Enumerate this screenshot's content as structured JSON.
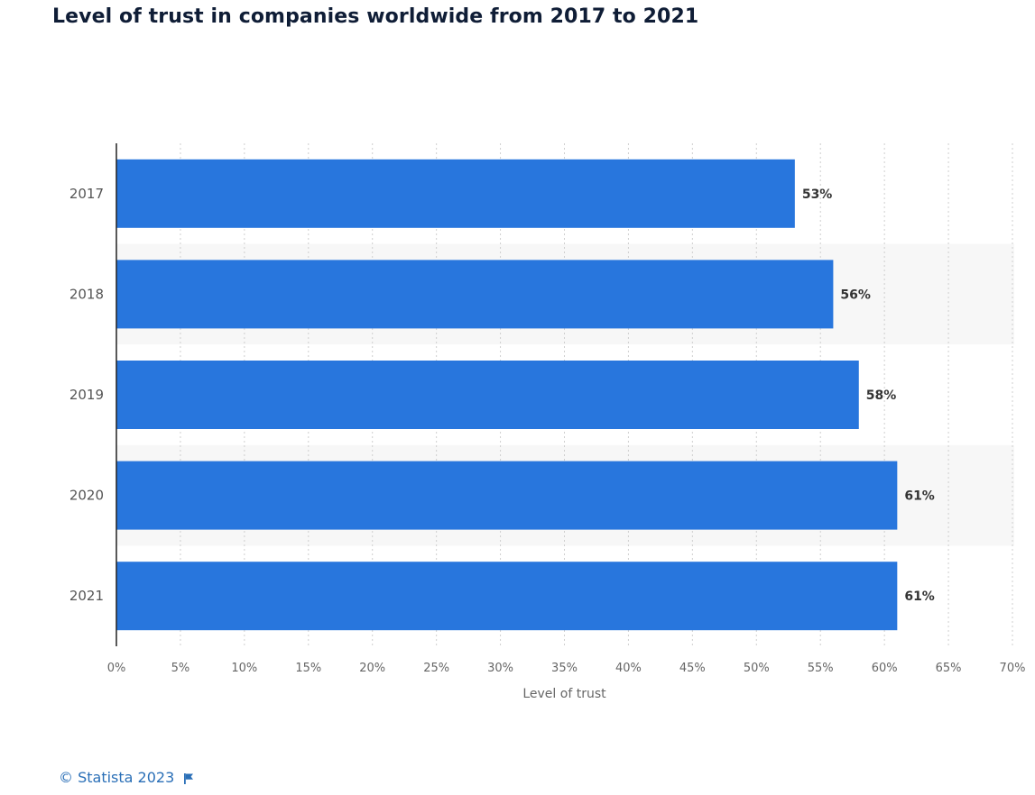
{
  "chart_title": "Level of trust in companies worldwide from 2017 to 2021",
  "chart_data": {
    "type": "bar",
    "orientation": "horizontal",
    "title": "Level of trust in companies worldwide from 2017 to 2021",
    "categories": [
      "2017",
      "2018",
      "2019",
      "2020",
      "2021"
    ],
    "values": [
      53,
      56,
      58,
      61,
      61
    ],
    "value_labels": [
      "53%",
      "56%",
      "58%",
      "61%",
      "61%"
    ],
    "xlabel": "Level of trust",
    "ylabel": "",
    "xlim": [
      0,
      70
    ],
    "x_ticks": [
      0,
      5,
      10,
      15,
      20,
      25,
      30,
      35,
      40,
      45,
      50,
      55,
      60,
      65,
      70
    ],
    "x_tick_labels": [
      "0%",
      "5%",
      "10%",
      "15%",
      "20%",
      "25%",
      "30%",
      "35%",
      "40%",
      "45%",
      "50%",
      "55%",
      "60%",
      "65%",
      "70%"
    ],
    "grid": true,
    "legend": "none"
  },
  "colors": {
    "bar": "#2876dd",
    "band": "#f7f7f7",
    "grid": "#cfcfcf",
    "axis": "#222222",
    "title": "#0f1d36",
    "link": "#2a6fb7"
  },
  "footer": {
    "credit": "© Statista 2023",
    "flag_icon": "flag-icon"
  }
}
